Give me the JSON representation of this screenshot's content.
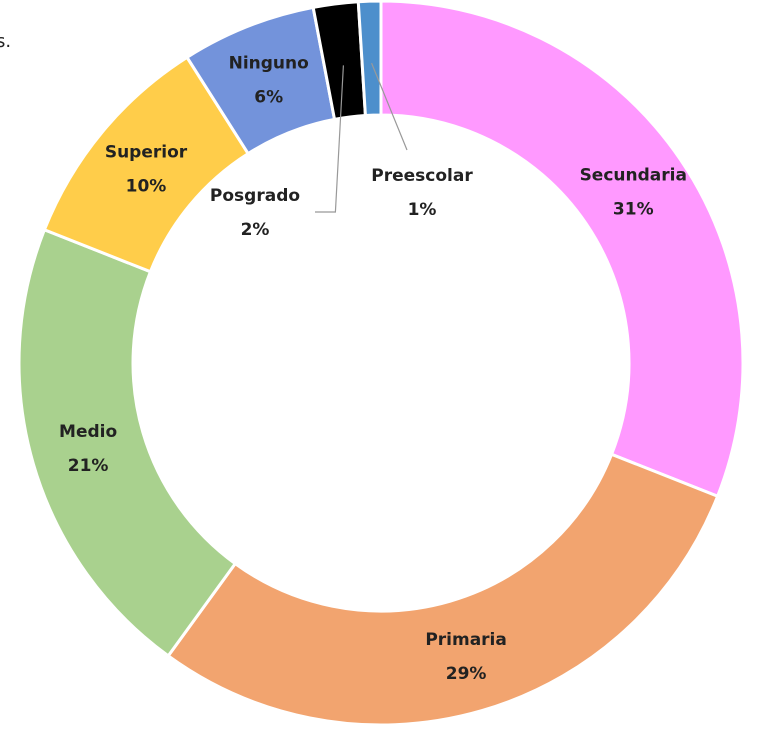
{
  "chart_data": {
    "type": "donut",
    "title": "s.",
    "categories": [
      "Secundaria",
      "Primaria",
      "Medio",
      "Superior",
      "Ninguno",
      "Posgrado",
      "Preescolar"
    ],
    "values": [
      31,
      29,
      21,
      10,
      6,
      2,
      1
    ],
    "value_labels": [
      "31%",
      "29%",
      "21%",
      "10%",
      "6%",
      "2%",
      "1%"
    ],
    "colors": [
      "#ff99ff",
      "#f2a46f",
      "#a9d18e",
      "#ffcd4a",
      "#7393db",
      "#000000",
      "#4d8fcc"
    ]
  }
}
